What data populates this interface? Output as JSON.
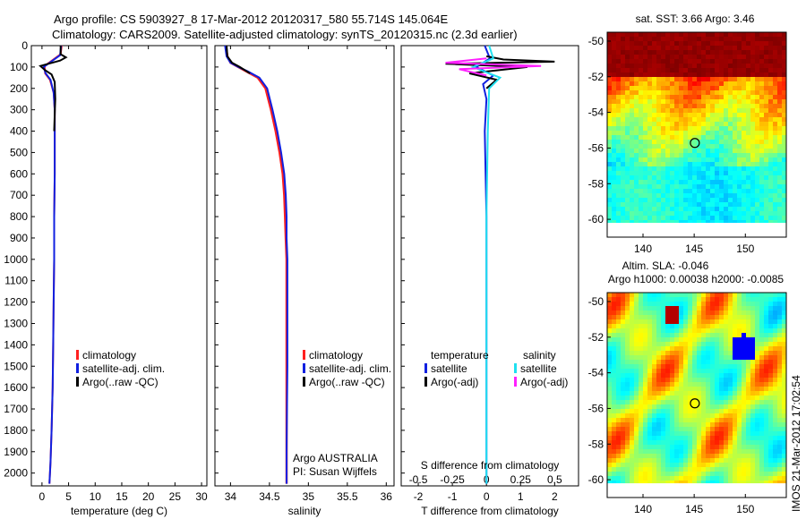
{
  "header": {
    "line1": "Argo profile: CS 5903927_8 17-Mar-2012 20120317_580 55.714S 145.064E",
    "line2": "Climatology: CARS2009. Satellite-adjusted climatology: synTS_20120315.nc (2.3d earlier)"
  },
  "side_stamp": "IMOS 21-Mar-2012 17:02:54",
  "colors": {
    "climatology": "#ff2020",
    "satellite": "#1020e0",
    "argo": "#000000",
    "satellite_salinity": "#20e0f0",
    "argo_salinity": "#ff20ff"
  },
  "chart_data": [
    {
      "type": "line",
      "name": "temperature",
      "xlabel": "temperature (deg C)",
      "ylabel": "",
      "xlim": [
        -2,
        31
      ],
      "ylim": [
        2060,
        0
      ],
      "xticks": [
        0,
        5,
        10,
        15,
        20,
        25,
        30
      ],
      "yticks": [
        0,
        100,
        200,
        300,
        400,
        500,
        600,
        700,
        800,
        900,
        1000,
        1100,
        1200,
        1300,
        1400,
        1500,
        1600,
        1700,
        1800,
        1900,
        2000
      ],
      "legend": [
        "climatology",
        "satellite-adj. clim.",
        "Argo(..raw -QC)"
      ],
      "series": [
        {
          "name": "climatology",
          "x": [
            3.7,
            3.5,
            0.5,
            0.6,
            1.5,
            2.2,
            2.4,
            2.4,
            2.4,
            2.3,
            2.3,
            2.2,
            2.1,
            2.0,
            1.8,
            1.6,
            1.4
          ],
          "y": [
            0,
            40,
            95,
            130,
            160,
            220,
            300,
            400,
            600,
            800,
            1000,
            1200,
            1400,
            1600,
            1800,
            1950,
            2050
          ]
        },
        {
          "name": "satellite-adj. clim.",
          "x": [
            3.6,
            3.4,
            0.3,
            0.7,
            1.6,
            2.2,
            2.4,
            2.4,
            2.4,
            2.3,
            2.3,
            2.2,
            2.1,
            2.0,
            1.8,
            1.6,
            1.4
          ],
          "y": [
            0,
            45,
            100,
            130,
            160,
            220,
            300,
            400,
            600,
            800,
            1000,
            1200,
            1400,
            1600,
            1800,
            1950,
            2050
          ]
        },
        {
          "name": "Argo(..raw -QC)",
          "x": [
            3.5,
            3.5,
            4.5,
            3.4,
            -0.3,
            0.6,
            1.8,
            2.4,
            2.5,
            2.4,
            2.3
          ],
          "y": [
            0,
            40,
            55,
            70,
            95,
            115,
            135,
            170,
            250,
            320,
            400
          ]
        }
      ]
    },
    {
      "type": "line",
      "name": "salinity",
      "xlabel": "salinity",
      "ylabel": "",
      "xlim": [
        33.8,
        36.1
      ],
      "ylim": [
        2060,
        0
      ],
      "xticks": [
        34,
        34.5,
        35,
        35.5,
        36
      ],
      "legend": [
        "climatology",
        "satellite-adj. clim.",
        "Argo(..raw -QC)"
      ],
      "annotation": [
        "Argo AUSTRALIA",
        "PI: Susan Wijffels"
      ],
      "series": [
        {
          "name": "climatology",
          "x": [
            33.94,
            33.96,
            34.0,
            34.1,
            34.2,
            34.35,
            34.45,
            34.52,
            34.58,
            34.63,
            34.67,
            34.69,
            34.7,
            34.71,
            34.72,
            34.72,
            34.72,
            34.72
          ],
          "y": [
            0,
            50,
            80,
            100,
            120,
            150,
            200,
            300,
            400,
            500,
            600,
            700,
            800,
            900,
            1000,
            1500,
            1900,
            2050
          ]
        },
        {
          "name": "satellite-adj. clim.",
          "x": [
            33.93,
            33.95,
            34.0,
            34.1,
            34.22,
            34.37,
            34.47,
            34.54,
            34.6,
            34.65,
            34.69,
            34.71,
            34.72,
            34.72,
            34.73,
            34.73,
            34.72,
            34.72
          ],
          "y": [
            0,
            50,
            80,
            100,
            120,
            150,
            200,
            300,
            400,
            500,
            600,
            700,
            800,
            900,
            1000,
            1500,
            1900,
            2050
          ]
        },
        {
          "name": "Argo(..raw -QC)",
          "x": [
            33.95,
            33.96,
            34.02,
            34.12,
            34.25
          ],
          "y": [
            0,
            50,
            80,
            100,
            130
          ]
        }
      ]
    },
    {
      "type": "line",
      "name": "difference",
      "xlabel": "T difference from climatology",
      "top_label": "S difference from climatology",
      "xlim": [
        -2.5,
        2.7
      ],
      "ylim": [
        2060,
        0
      ],
      "xticks": [
        -2,
        -1,
        0,
        1,
        2
      ],
      "s_ticks": [
        "-0.5",
        "-0.25",
        "0",
        "0.25",
        "0.5"
      ],
      "legend_headers": [
        "temperature",
        "salinity"
      ],
      "legend": [
        "satellite",
        "Argo(-adj)",
        "satellite",
        "Argo(-adj)"
      ],
      "series": [
        {
          "name": "temperature satellite",
          "x": [
            -0.05,
            0.1,
            -0.3,
            0.2,
            -0.1,
            0.0,
            -0.05,
            0.0,
            0.0
          ],
          "y": [
            0,
            60,
            100,
            140,
            180,
            250,
            400,
            800,
            2050
          ]
        },
        {
          "name": "temperature Argo(-adj)",
          "x": [
            0.0,
            0.5,
            2.0,
            -1.2,
            1.2,
            -0.5,
            0.3,
            0.0
          ],
          "y": [
            50,
            65,
            75,
            85,
            100,
            130,
            160,
            200
          ]
        },
        {
          "name": "salinity satellite",
          "x": [
            0.02,
            0.05,
            -0.1,
            0.1,
            0.02,
            0.01,
            0.0,
            0.0
          ],
          "y": [
            0,
            60,
            100,
            150,
            200,
            400,
            800,
            2050
          ]
        },
        {
          "name": "salinity Argo(-adj)",
          "x": [
            0.0,
            -0.3,
            0.4,
            -0.2,
            0.0
          ],
          "y": [
            60,
            80,
            95,
            110,
            140
          ]
        }
      ]
    },
    {
      "type": "heatmap",
      "name": "sst-map",
      "title": "sat. SST: 3.66 Argo: 3.46",
      "xlim": [
        136.5,
        154
      ],
      "ylim": [
        -61,
        -49.5
      ],
      "xticks": [
        140,
        145,
        150
      ],
      "yticks": [
        -50,
        -52,
        -54,
        -56,
        -58,
        -60
      ],
      "marker": {
        "lon": 145.064,
        "lat": -55.714
      }
    },
    {
      "type": "heatmap",
      "name": "sla-map",
      "title": "Altim. SLA: -0.046",
      "subtitle": "Argo h1000: 0.00038 h2000: -0.0085",
      "xlim": [
        136.5,
        154
      ],
      "ylim": [
        -61,
        -49.5
      ],
      "xticks": [
        140,
        145,
        150
      ],
      "yticks": [
        -50,
        -52,
        -54,
        -56,
        -58,
        -60
      ],
      "marker": {
        "lon": 145.064,
        "lat": -55.714
      }
    }
  ]
}
